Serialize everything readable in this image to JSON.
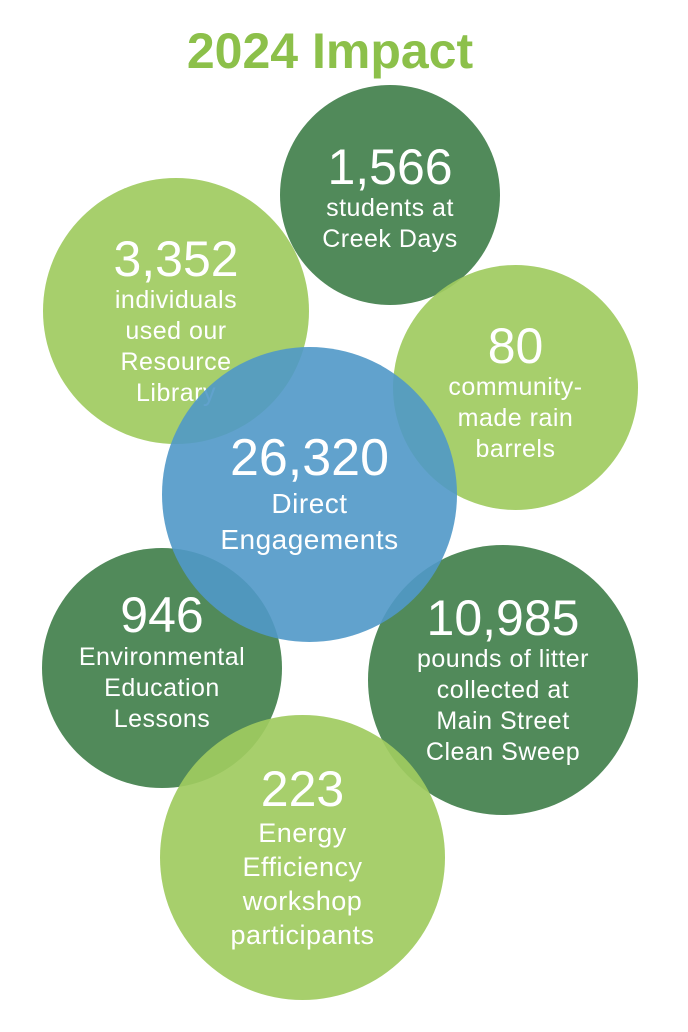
{
  "title": "2024 Impact",
  "colors": {
    "title": "#8cc04a",
    "light_green": "#a0cb60",
    "dark_green": "#3e7d48",
    "blue": "#5098c8"
  },
  "stats": [
    {
      "value": "1,566",
      "label": "students at\nCreek Days",
      "color": "dark_green"
    },
    {
      "value": "3,352",
      "label": "individuals\nused our\nResource\nLibrary",
      "color": "light_green"
    },
    {
      "value": "80",
      "label": "community-\nmade rain\nbarrels",
      "color": "light_green"
    },
    {
      "value": "946",
      "label": "Environmental\nEducation\nLessons",
      "color": "dark_green"
    },
    {
      "value": "10,985",
      "label": "pounds of litter\ncollected at\nMain Street\nClean Sweep",
      "color": "dark_green"
    },
    {
      "value": "223",
      "label": "Energy\nEfficiency\nworkshop\nparticipants",
      "color": "light_green"
    },
    {
      "value": "26,320",
      "label": "Direct\nEngagements",
      "color": "blue"
    }
  ]
}
